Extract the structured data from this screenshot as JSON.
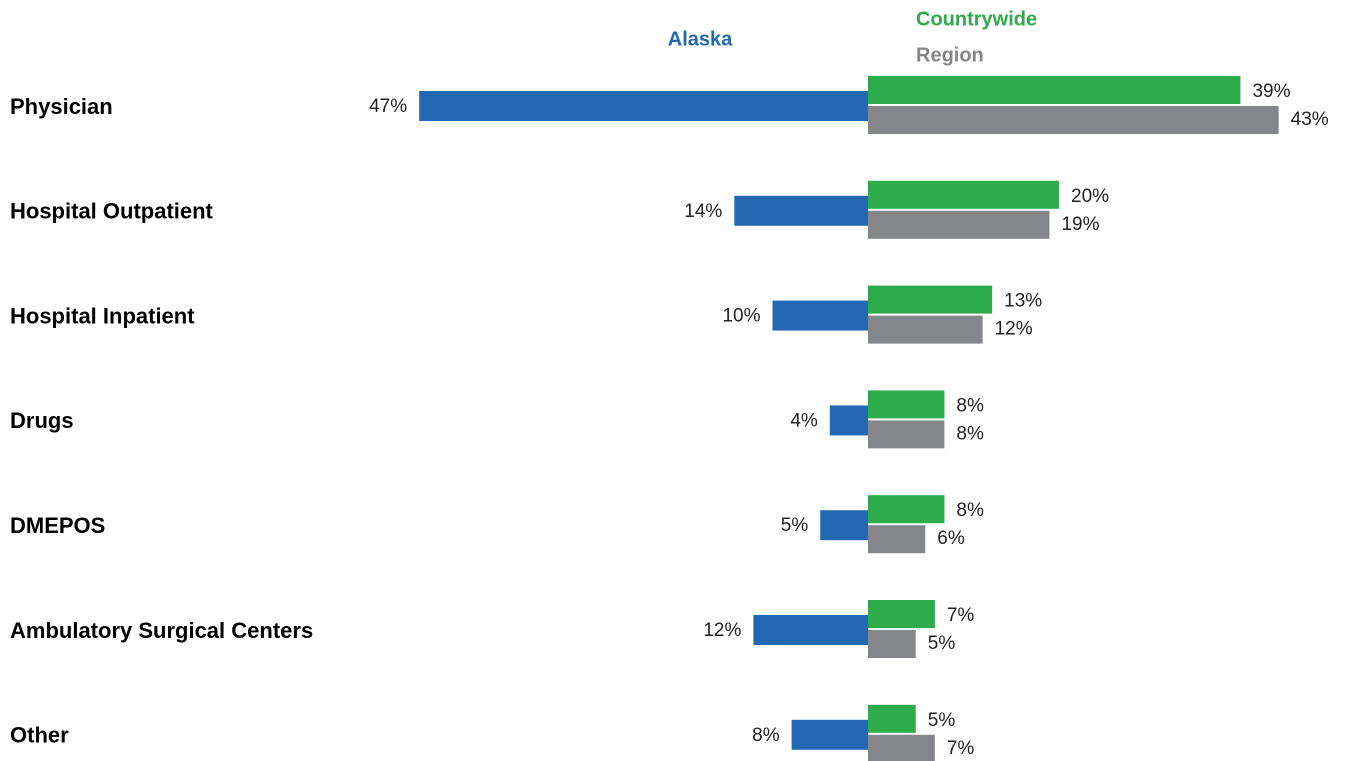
{
  "chart_data": {
    "type": "diverging-bar",
    "categories": [
      "Physician",
      "Hospital Outpatient",
      "Hospital Inpatient",
      "Drugs",
      "DMEPOS",
      "Ambulatory Surgical Centers",
      "Other"
    ],
    "series": [
      {
        "name": "Alaska",
        "color": "#2368b3",
        "side": "left",
        "values": [
          47,
          14,
          10,
          4,
          5,
          12,
          8
        ],
        "value_labels": [
          "47%",
          "14%",
          "10%",
          "4%",
          "5%",
          "12%",
          "8%"
        ]
      },
      {
        "name": "Countrywide",
        "color": "#2eab4b",
        "side": "right",
        "values": [
          39,
          20,
          13,
          8,
          8,
          7,
          5
        ],
        "value_labels": [
          "39%",
          "20%",
          "13%",
          "8%",
          "8%",
          "7%",
          "5%"
        ]
      },
      {
        "name": "Region",
        "color": "#858689",
        "side": "right",
        "values": [
          43,
          19,
          12,
          8,
          6,
          5,
          7
        ],
        "value_labels": [
          "43%",
          "19%",
          "12%",
          "8%",
          "6%",
          "5%",
          "7%"
        ]
      }
    ]
  }
}
